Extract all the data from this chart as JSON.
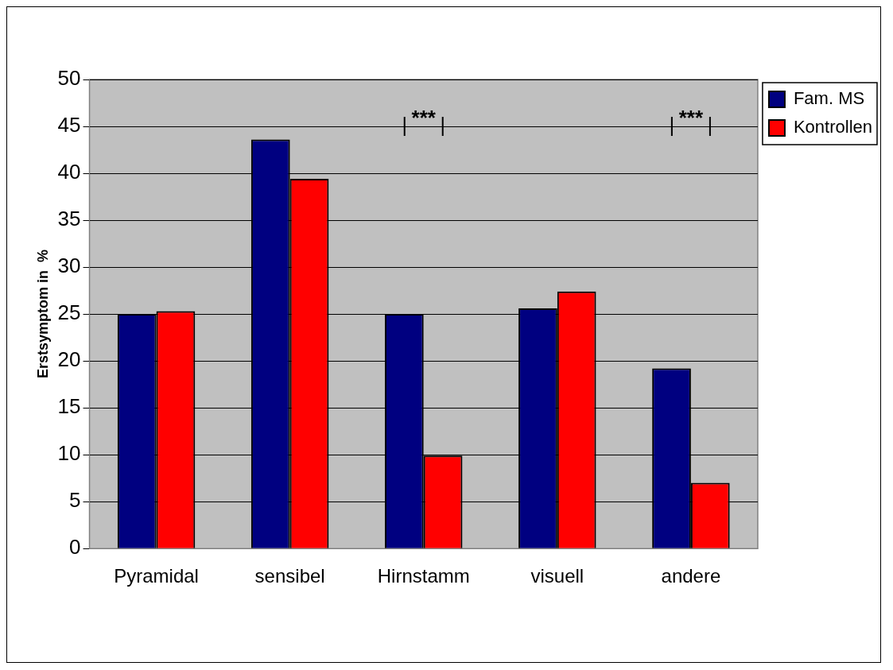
{
  "chart_data": {
    "type": "bar",
    "ylabel": "Erstsymptom in  %",
    "categories": [
      "Pyramidal",
      "sensibel",
      "Hirnstamm",
      "visuell",
      "andere"
    ],
    "series": [
      {
        "name": "Fam. MS",
        "color": "#000080",
        "values": [
          25.0,
          43.6,
          25.0,
          25.6,
          19.2
        ]
      },
      {
        "name": "Kontrollen",
        "color": "#ff0000",
        "values": [
          25.3,
          39.4,
          9.9,
          27.4,
          7.0
        ]
      }
    ],
    "ylim": [
      0,
      50
    ],
    "yticks": [
      0,
      5,
      10,
      15,
      20,
      25,
      30,
      35,
      40,
      45,
      50
    ],
    "grid": "y",
    "legend": "right",
    "annotations": [
      "***",
      "***"
    ]
  }
}
